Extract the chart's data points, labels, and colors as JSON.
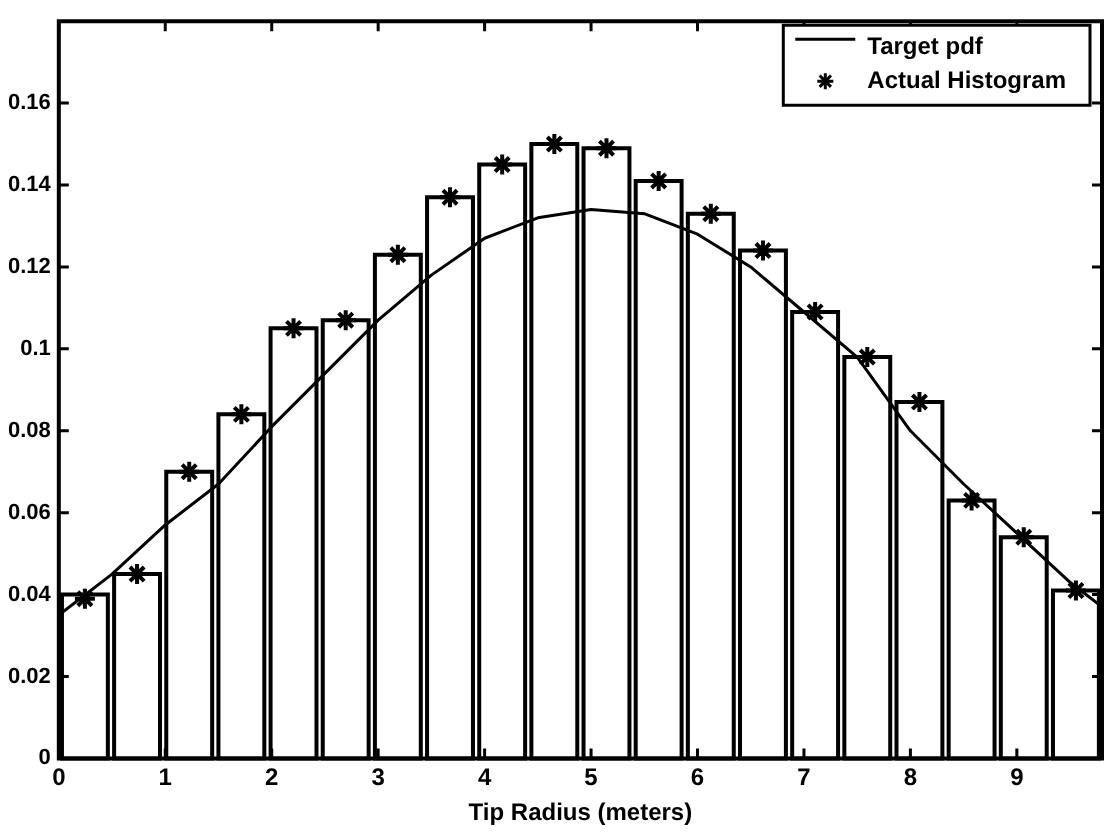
{
  "chart_data": {
    "type": "histogram",
    "xlabel": "Tip Radius (meters)",
    "bins": [
      0,
      0.49,
      0.98,
      1.47,
      1.96,
      2.45,
      2.94,
      3.43,
      3.92,
      4.41,
      4.9,
      5.39,
      5.88,
      6.37,
      6.86,
      7.35,
      7.84,
      8.33,
      8.82,
      9.31,
      9.8
    ],
    "values": [
      0.04,
      0.045,
      0.07,
      0.084,
      0.105,
      0.107,
      0.123,
      0.137,
      0.145,
      0.15,
      0.149,
      0.141,
      0.133,
      0.124,
      0.109,
      0.098,
      0.087,
      0.063,
      0.054,
      0.041
    ],
    "color": "#ffffff",
    "series": [
      {
        "type": "line",
        "name": "Target pdf",
        "color": "#000000",
        "x": [
          0,
          0.5,
          1,
          1.5,
          2,
          2.5,
          3,
          3.5,
          4,
          4.5,
          5,
          5.5,
          6,
          6.5,
          7,
          7.5,
          8,
          8.5,
          9,
          9.5,
          9.8
        ],
        "values": [
          0.035,
          0.045,
          0.057,
          0.067,
          0.081,
          0.094,
          0.107,
          0.118,
          0.127,
          0.132,
          0.134,
          0.133,
          0.128,
          0.12,
          0.109,
          0.098,
          0.08,
          0.067,
          0.055,
          0.043,
          0.037
        ]
      },
      {
        "type": "scatter",
        "name": "Actual Histogram",
        "color": "#000000",
        "marker": "cross",
        "x": [
          0.245,
          0.735,
          1.225,
          1.715,
          2.205,
          2.695,
          3.185,
          3.675,
          4.165,
          4.655,
          5.145,
          5.635,
          6.125,
          6.615,
          7.105,
          7.595,
          8.085,
          8.575,
          9.065,
          9.555
        ],
        "values": [
          0.039,
          0.045,
          0.07,
          0.084,
          0.105,
          0.107,
          0.123,
          0.137,
          0.145,
          0.15,
          0.149,
          0.141,
          0.133,
          0.124,
          0.109,
          0.098,
          0.087,
          0.063,
          0.054,
          0.041
        ]
      }
    ],
    "xlim": [
      0,
      9.8
    ],
    "xticks": [
      0,
      1,
      2,
      3,
      4,
      5,
      6,
      7,
      8,
      9
    ],
    "ylim": [
      0,
      0.18
    ],
    "yticks": [
      0,
      0.02,
      0.04,
      0.06,
      0.08,
      0.1,
      0.12,
      0.14,
      0.16
    ],
    "grid": false,
    "legend": "top right"
  }
}
